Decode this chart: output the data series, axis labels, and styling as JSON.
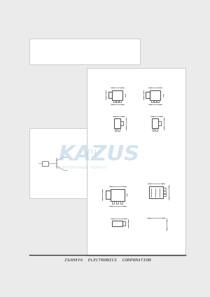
{
  "bg_color": "#ebebeb",
  "white": "#ffffff",
  "dark": "#333333",
  "gray": "#aaaaaa",
  "light_blue": "#c8d8e8",
  "footer_text": "ISAHAYA  ELECTRONICS  CORPORATION",
  "watermark_text": "KAZUS",
  "watermark_sub": "ЭЛЕКТРОННЫЙ  ПОРТАЛ",
  "watermark_suffix": ".ru"
}
